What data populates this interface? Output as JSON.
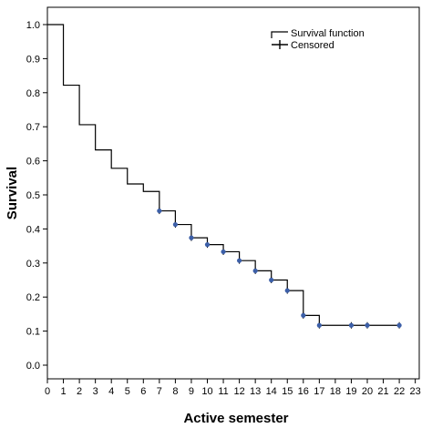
{
  "chart_data": {
    "type": "line",
    "title": "",
    "xlabel": "Active semester",
    "ylabel": "Survival",
    "xlim": [
      0,
      23
    ],
    "ylim": [
      0,
      1.0
    ],
    "xticks": [
      "0",
      "1",
      "2",
      "3",
      "4",
      "5",
      "6",
      "7",
      "8",
      "9",
      "10",
      "11",
      "12",
      "13",
      "14",
      "15",
      "16",
      "17",
      "18",
      "19",
      "20",
      "21",
      "22",
      "23"
    ],
    "yticks": [
      "0.0",
      "0.1",
      "0.2",
      "0.3",
      "0.4",
      "0.5",
      "0.6",
      "0.7",
      "0.8",
      "0.9",
      "1.0"
    ],
    "grid": false,
    "legend_position": "top-right",
    "series": [
      {
        "name": "Survival function",
        "step": true,
        "x": [
          0,
          1,
          2,
          3,
          4,
          5,
          6,
          7,
          8,
          9,
          10,
          11,
          12,
          13,
          14,
          15,
          16,
          17,
          22
        ],
        "y": [
          1.0,
          0.822,
          0.706,
          0.632,
          0.578,
          0.532,
          0.51,
          0.453,
          0.413,
          0.374,
          0.354,
          0.333,
          0.307,
          0.277,
          0.25,
          0.219,
          0.146,
          0.117,
          0.117
        ]
      },
      {
        "name": "Censored",
        "marker": "+",
        "color": "#3c5fa8",
        "x": [
          7,
          8,
          9,
          10,
          11,
          12,
          13,
          14,
          15,
          16,
          17,
          19,
          20,
          22
        ],
        "y": [
          0.453,
          0.413,
          0.374,
          0.354,
          0.333,
          0.307,
          0.277,
          0.25,
          0.219,
          0.146,
          0.117,
          0.117,
          0.117,
          0.117
        ]
      }
    ]
  }
}
